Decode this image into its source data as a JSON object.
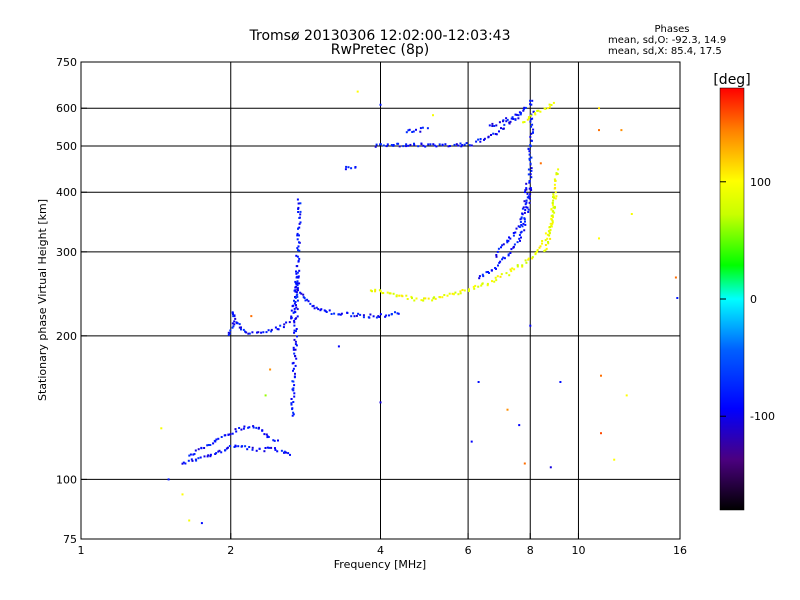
{
  "chart_data": {
    "type": "scatter",
    "title": "Tromsø 20130306 12:02:00-12:03:43",
    "subtitle": "RwPretec (8p)",
    "stats": {
      "title": "Phases",
      "line_o": "mean, sd,O: -92.3, 14.9",
      "line_x": "mean, sd,X:  85.4, 17.5"
    },
    "xlabel": "Frequency [MHz]",
    "ylabel": "Stationary phase Virtual Height [km]",
    "x_scale": "log",
    "y_scale": "log",
    "xlim": [
      1,
      16
    ],
    "ylim": [
      75,
      750
    ],
    "x_ticks": [
      1,
      2,
      4,
      6,
      8,
      10,
      16
    ],
    "x_tick_labels": [
      "1",
      "2",
      "4",
      "6",
      "8",
      "10",
      "16"
    ],
    "x_grid": [
      2,
      4,
      6,
      8,
      10
    ],
    "y_ticks": [
      75,
      100,
      200,
      300,
      400,
      500,
      600,
      750
    ],
    "y_tick_labels": [
      "75",
      "100",
      "200",
      "300",
      "400",
      "500",
      "600",
      "750"
    ],
    "y_grid": [
      100,
      200,
      300,
      400,
      500,
      600
    ],
    "colorbar": {
      "label": "[deg]",
      "range": [
        -180,
        180
      ],
      "ticks": [
        100,
        0,
        -100
      ],
      "tick_labels": [
        "100",
        "0",
        "-100"
      ]
    },
    "series": [
      {
        "phase_deg": -95,
        "traces": [
          [
            [
              1.6,
              108
            ],
            [
              1.7,
              110
            ],
            [
              1.8,
              112
            ],
            [
              1.9,
              114
            ],
            [
              1.95,
              115
            ],
            [
              2.0,
              118
            ],
            [
              2.1,
              117
            ],
            [
              2.2,
              116
            ],
            [
              2.3,
              115
            ],
            [
              2.4,
              116
            ],
            [
              2.5,
              115
            ],
            [
              2.6,
              113
            ],
            [
              2.65,
              112
            ]
          ],
          [
            [
              1.65,
              112
            ],
            [
              1.8,
              118
            ],
            [
              1.9,
              122
            ],
            [
              2.0,
              125
            ],
            [
              2.1,
              128
            ],
            [
              2.2,
              130
            ],
            [
              2.3,
              127
            ],
            [
              2.4,
              122
            ],
            [
              2.5,
              120
            ]
          ],
          [
            [
              1.98,
              200
            ],
            [
              2.0,
              205
            ],
            [
              2.02,
              212
            ],
            [
              2.03,
              225
            ],
            [
              2.05,
              215
            ],
            [
              2.08,
              210
            ],
            [
              2.1,
              205
            ],
            [
              2.2,
              202
            ],
            [
              2.3,
              204
            ],
            [
              2.4,
              205
            ],
            [
              2.5,
              208
            ],
            [
              2.6,
              212
            ],
            [
              2.65,
              220
            ],
            [
              2.7,
              240
            ],
            [
              2.72,
              270
            ],
            [
              2.75,
              250
            ],
            [
              2.8,
              240
            ],
            [
              2.85,
              236
            ],
            [
              2.9,
              232
            ],
            [
              3.0,
              228
            ],
            [
              3.2,
              224
            ],
            [
              3.4,
              222
            ],
            [
              3.6,
              221
            ],
            [
              3.8,
              220
            ],
            [
              4.0,
              220
            ],
            [
              4.2,
              222
            ],
            [
              4.4,
              224
            ]
          ],
          [
            [
              2.66,
              135
            ],
            [
              2.67,
              150
            ],
            [
              2.68,
              165
            ],
            [
              2.69,
              180
            ],
            [
              2.7,
              195
            ],
            [
              2.7,
              210
            ],
            [
              2.71,
              230
            ],
            [
              2.72,
              260
            ],
            [
              2.73,
              300
            ],
            [
              2.74,
              340
            ],
            [
              2.75,
              390
            ]
          ],
          [
            [
              3.4,
              450
            ],
            [
              3.5,
              450
            ],
            [
              3.6,
              452
            ]
          ],
          [
            [
              3.9,
              500
            ],
            [
              4.1,
              503
            ],
            [
              4.4,
              503
            ],
            [
              4.8,
              502
            ],
            [
              5.2,
              501
            ],
            [
              5.6,
              502
            ],
            [
              6.0,
              504
            ],
            [
              6.2,
              506
            ]
          ],
          [
            [
              4.5,
              535
            ],
            [
              4.8,
              540
            ],
            [
              5.0,
              545
            ]
          ],
          [
            [
              6.2,
              510
            ],
            [
              6.5,
              520
            ],
            [
              6.8,
              530
            ],
            [
              7.0,
              545
            ],
            [
              7.2,
              555
            ],
            [
              7.4,
              565
            ],
            [
              7.6,
              580
            ],
            [
              7.8,
              600
            ],
            [
              8.0,
              615
            ],
            [
              8.1,
              630
            ]
          ],
          [
            [
              6.6,
              550
            ],
            [
              7.0,
              560
            ],
            [
              7.4,
              575
            ],
            [
              7.7,
              590
            ]
          ],
          [
            [
              6.3,
              265
            ],
            [
              6.5,
              270
            ],
            [
              6.8,
              278
            ],
            [
              7.0,
              285
            ],
            [
              7.2,
              295
            ],
            [
              7.4,
              305
            ],
            [
              7.6,
              315
            ],
            [
              7.7,
              330
            ],
            [
              7.8,
              345
            ],
            [
              7.9,
              370
            ],
            [
              7.95,
              390
            ],
            [
              8.0,
              420
            ],
            [
              8.0,
              460
            ],
            [
              8.0,
              500
            ],
            [
              8.05,
              550
            ],
            [
              8.1,
              600
            ]
          ],
          [
            [
              6.8,
              295
            ],
            [
              7.1,
              310
            ],
            [
              7.4,
              325
            ],
            [
              7.6,
              340
            ],
            [
              7.75,
              360
            ],
            [
              7.85,
              390
            ],
            [
              7.92,
              420
            ]
          ]
        ]
      },
      {
        "phase_deg": 90,
        "traces": [
          [
            [
              3.8,
              250
            ],
            [
              4.0,
              248
            ],
            [
              4.2,
              245
            ],
            [
              4.4,
              242
            ],
            [
              4.6,
              240
            ],
            [
              4.8,
              238
            ]
          ],
          [
            [
              4.8,
              238
            ],
            [
              5.2,
              240
            ],
            [
              5.6,
              245
            ],
            [
              6.0,
              250
            ],
            [
              6.4,
              255
            ],
            [
              6.8,
              262
            ],
            [
              7.2,
              270
            ],
            [
              7.6,
              280
            ],
            [
              8.0,
              290
            ],
            [
              8.3,
              300
            ],
            [
              8.6,
              320
            ],
            [
              8.8,
              340
            ],
            [
              8.9,
              360
            ],
            [
              8.95,
              390
            ],
            [
              9.0,
              420
            ],
            [
              9.05,
              450
            ]
          ],
          [
            [
              7.8,
              560
            ],
            [
              8.0,
              575
            ],
            [
              8.2,
              585
            ],
            [
              8.5,
              595
            ],
            [
              8.8,
              610
            ],
            [
              9.0,
              620
            ]
          ],
          [
            [
              8.6,
              300
            ],
            [
              8.7,
              320
            ],
            [
              8.8,
              345
            ],
            [
              8.9,
              370
            ],
            [
              9.0,
              400
            ]
          ]
        ]
      }
    ],
    "scattered_points": [
      {
        "x": 1.45,
        "y": 128,
        "phase_deg": 95
      },
      {
        "x": 1.5,
        "y": 100,
        "phase_deg": -90
      },
      {
        "x": 1.6,
        "y": 93,
        "phase_deg": 100
      },
      {
        "x": 1.65,
        "y": 82,
        "phase_deg": 95
      },
      {
        "x": 1.75,
        "y": 81,
        "phase_deg": -95
      },
      {
        "x": 2.35,
        "y": 150,
        "phase_deg": 60
      },
      {
        "x": 2.2,
        "y": 220,
        "phase_deg": 150
      },
      {
        "x": 2.4,
        "y": 170,
        "phase_deg": 140
      },
      {
        "x": 3.3,
        "y": 190,
        "phase_deg": -100
      },
      {
        "x": 3.6,
        "y": 650,
        "phase_deg": 100
      },
      {
        "x": 4.0,
        "y": 610,
        "phase_deg": -90
      },
      {
        "x": 4.0,
        "y": 145,
        "phase_deg": -110
      },
      {
        "x": 5.1,
        "y": 580,
        "phase_deg": 95
      },
      {
        "x": 6.1,
        "y": 120,
        "phase_deg": -100
      },
      {
        "x": 6.3,
        "y": 160,
        "phase_deg": -95
      },
      {
        "x": 7.2,
        "y": 140,
        "phase_deg": 140
      },
      {
        "x": 7.6,
        "y": 130,
        "phase_deg": -100
      },
      {
        "x": 7.8,
        "y": 108,
        "phase_deg": 150
      },
      {
        "x": 8.0,
        "y": 210,
        "phase_deg": -100
      },
      {
        "x": 8.8,
        "y": 106,
        "phase_deg": -110
      },
      {
        "x": 9.2,
        "y": 160,
        "phase_deg": -95
      },
      {
        "x": 11.0,
        "y": 600,
        "phase_deg": 110
      },
      {
        "x": 11.0,
        "y": 540,
        "phase_deg": 150
      },
      {
        "x": 11.1,
        "y": 165,
        "phase_deg": 150
      },
      {
        "x": 11.1,
        "y": 125,
        "phase_deg": 160
      },
      {
        "x": 11.0,
        "y": 320,
        "phase_deg": 100
      },
      {
        "x": 12.2,
        "y": 540,
        "phase_deg": 140
      },
      {
        "x": 12.5,
        "y": 150,
        "phase_deg": 100
      },
      {
        "x": 12.8,
        "y": 360,
        "phase_deg": 95
      },
      {
        "x": 11.8,
        "y": 110,
        "phase_deg": 100
      },
      {
        "x": 15.7,
        "y": 265,
        "phase_deg": 150
      },
      {
        "x": 15.8,
        "y": 240,
        "phase_deg": -90
      },
      {
        "x": 8.4,
        "y": 460,
        "phase_deg": 150
      }
    ]
  }
}
